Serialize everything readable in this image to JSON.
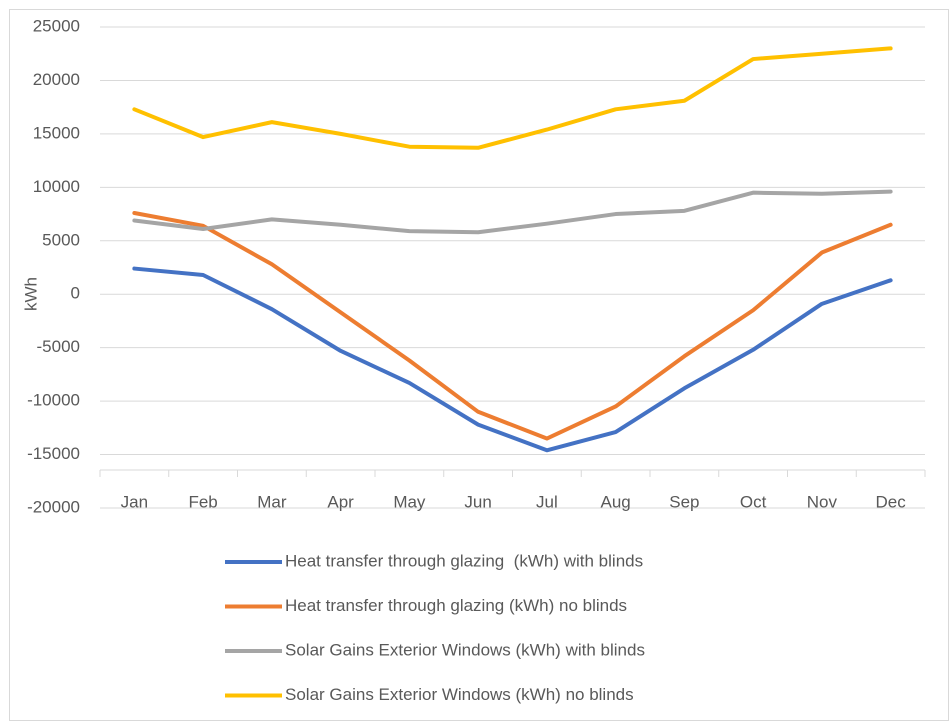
{
  "chart_data": {
    "type": "line",
    "y_label": "kWh",
    "categories": [
      "Jan",
      "Feb",
      "Mar",
      "Apr",
      "May",
      "Jun",
      "Jul",
      "Aug",
      "Sep",
      "Oct",
      "Nov",
      "Dec"
    ],
    "series": [
      {
        "name": "Heat transfer through glazing  (kWh) with blinds",
        "color": "#4472c4",
        "values": [
          2400,
          1800,
          -1400,
          -5300,
          -8300,
          -12200,
          -14600,
          -12900,
          -8800,
          -5200,
          -900,
          1300
        ]
      },
      {
        "name": "Heat transfer through glazing (kWh) no blinds",
        "color": "#ed7d31",
        "values": [
          7600,
          6400,
          2800,
          -1700,
          -6200,
          -11000,
          -13500,
          -10500,
          -5800,
          -1500,
          3900,
          6500
        ]
      },
      {
        "name": "Solar Gains Exterior Windows (kWh) with blinds",
        "color": "#a5a5a5",
        "values": [
          6900,
          6100,
          7000,
          6500,
          5900,
          5800,
          6600,
          7500,
          7800,
          9500,
          9400,
          9600
        ]
      },
      {
        "name": "Solar Gains Exterior Windows (kWh) no blinds",
        "color": "#ffc000",
        "values": [
          17300,
          14700,
          16100,
          15000,
          13800,
          13700,
          15400,
          17300,
          18100,
          22000,
          22500,
          23000
        ]
      }
    ],
    "ylim": [
      -20000,
      25000
    ],
    "yticks": [
      -20000,
      -15000,
      -10000,
      -5000,
      0,
      5000,
      10000,
      15000,
      20000,
      25000
    ],
    "grid": true,
    "legend": "bottom"
  }
}
